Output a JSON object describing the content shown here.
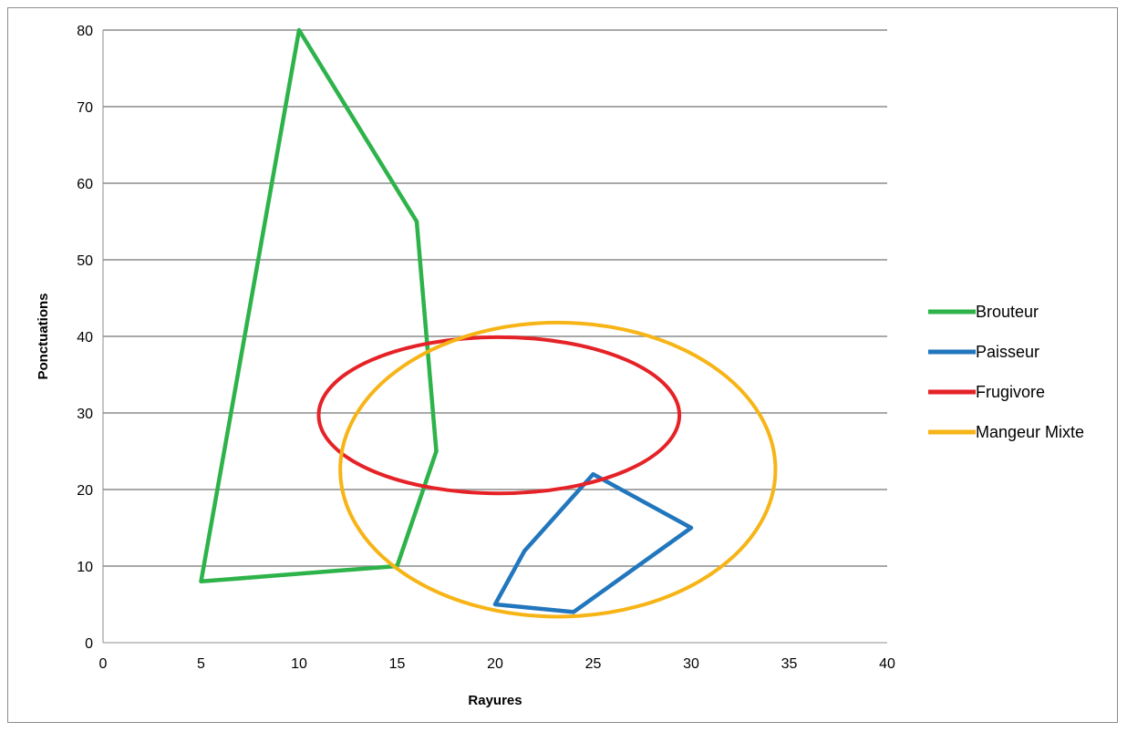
{
  "chart_data": {
    "type": "scatter",
    "title": "",
    "xlabel": "Rayures",
    "ylabel": "Ponctuations",
    "xlim": [
      0,
      40
    ],
    "ylim": [
      0,
      80
    ],
    "xticks": [
      0,
      5,
      10,
      15,
      20,
      25,
      30,
      35,
      40
    ],
    "yticks": [
      0,
      10,
      20,
      30,
      40,
      50,
      60,
      70,
      80
    ],
    "grid": "horizontal",
    "legend_position": "right",
    "series": [
      {
        "name": "Brouteur",
        "shape": "polygon",
        "color": "#2db34a",
        "points": [
          [
            10,
            80
          ],
          [
            16,
            55
          ],
          [
            17,
            25
          ],
          [
            15,
            10
          ],
          [
            5,
            8
          ],
          [
            10,
            80
          ]
        ]
      },
      {
        "name": "Paisseur",
        "shape": "polygon",
        "color": "#2176bd",
        "points": [
          [
            25,
            22
          ],
          [
            30,
            15
          ],
          [
            24,
            4
          ],
          [
            20,
            5
          ],
          [
            21.5,
            12
          ],
          [
            25,
            22
          ]
        ]
      },
      {
        "name": "Frugivore",
        "shape": "ellipse",
        "color": "#e52227",
        "center": [
          20.2,
          29.7
        ],
        "radii": [
          9.2,
          10.2
        ]
      },
      {
        "name": "Mangeur Mixte",
        "shape": "ellipse",
        "color": "#f7b416",
        "center": [
          23.2,
          22.6
        ],
        "radii": [
          11.1,
          19.2
        ]
      }
    ]
  }
}
